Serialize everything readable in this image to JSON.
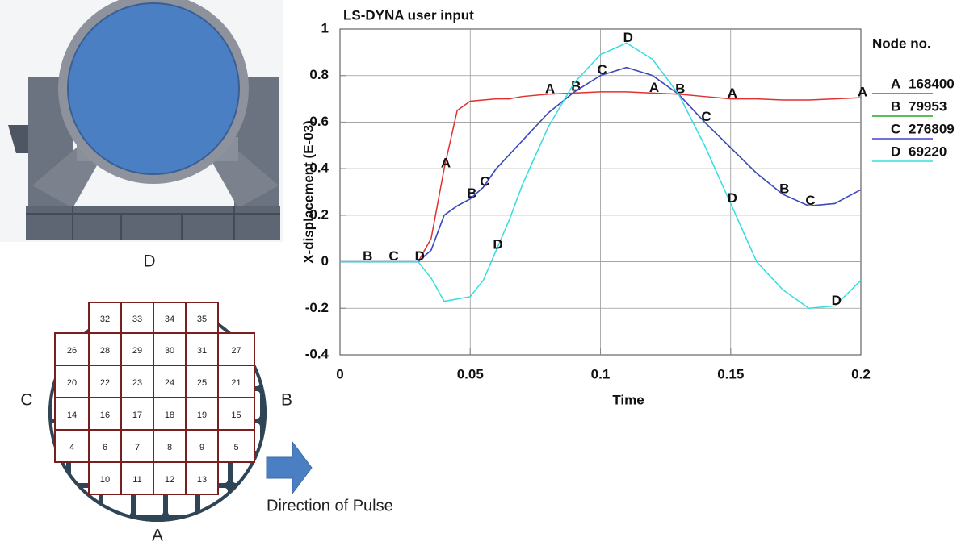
{
  "chart_data": {
    "type": "line",
    "title": "LS-DYNA user input",
    "x_label": "Time",
    "y_label": "X-displacement (E-03)",
    "legend_title": "Node no.",
    "x": [
      0,
      0.01,
      0.02,
      0.03,
      0.035,
      0.04,
      0.045,
      0.05,
      0.055,
      0.06,
      0.065,
      0.07,
      0.08,
      0.09,
      0.1,
      0.11,
      0.12,
      0.13,
      0.14,
      0.15,
      0.16,
      0.17,
      0.18,
      0.19,
      0.2
    ],
    "series": [
      {
        "name": "168400",
        "label": "A",
        "color": "#e03030",
        "values": [
          0,
          0,
          0,
          0,
          0.1,
          0.4,
          0.65,
          0.69,
          0.695,
          0.7,
          0.7,
          0.71,
          0.72,
          0.725,
          0.73,
          0.73,
          0.725,
          0.72,
          0.71,
          0.7,
          0.7,
          0.695,
          0.695,
          0.7,
          0.705
        ]
      },
      {
        "name": "79953",
        "label": "B",
        "color": "#22aa22",
        "values": [
          0,
          0,
          0,
          0,
          0.05,
          0.2,
          0.24,
          0.27,
          0.32,
          0.4,
          0.46,
          0.52,
          0.64,
          0.73,
          0.8,
          0.835,
          0.8,
          0.72,
          0.6,
          0.49,
          0.38,
          0.29,
          0.24,
          0.25,
          0.31
        ]
      },
      {
        "name": "276809",
        "label": "C",
        "color": "#4444cc",
        "values": [
          0,
          0,
          0,
          0,
          0.05,
          0.2,
          0.24,
          0.27,
          0.32,
          0.4,
          0.46,
          0.52,
          0.64,
          0.73,
          0.8,
          0.835,
          0.8,
          0.72,
          0.6,
          0.49,
          0.38,
          0.29,
          0.24,
          0.25,
          0.31
        ]
      },
      {
        "name": "69220",
        "label": "D",
        "color": "#33dddd",
        "values": [
          0,
          0,
          0,
          0,
          -0.07,
          -0.17,
          -0.16,
          -0.15,
          -0.08,
          0.05,
          0.18,
          0.33,
          0.58,
          0.77,
          0.89,
          0.94,
          0.87,
          0.72,
          0.5,
          0.25,
          0,
          -0.12,
          -0.2,
          -0.19,
          -0.08
        ]
      }
    ],
    "xlim": [
      0,
      0.2
    ],
    "xticks": [
      0,
      0.05,
      0.1,
      0.15,
      0.2
    ],
    "ylim": [
      -0.4,
      1
    ],
    "yticks": [
      -0.4,
      -0.2,
      0,
      0.2,
      0.4,
      0.6,
      0.8,
      1
    ],
    "grid": true
  },
  "diagram": {
    "top": "D",
    "bottom": "A",
    "left": "C",
    "right": "B",
    "cells": [
      [
        32,
        33,
        34,
        35
      ],
      [
        26,
        28,
        29,
        30,
        31,
        27
      ],
      [
        20,
        22,
        23,
        24,
        25,
        21
      ],
      [
        14,
        16,
        17,
        18,
        19,
        15
      ],
      [
        4,
        6,
        7,
        8,
        9,
        5
      ],
      [
        10,
        11,
        12,
        13
      ]
    ],
    "arrow_label": "Direction of Pulse"
  }
}
